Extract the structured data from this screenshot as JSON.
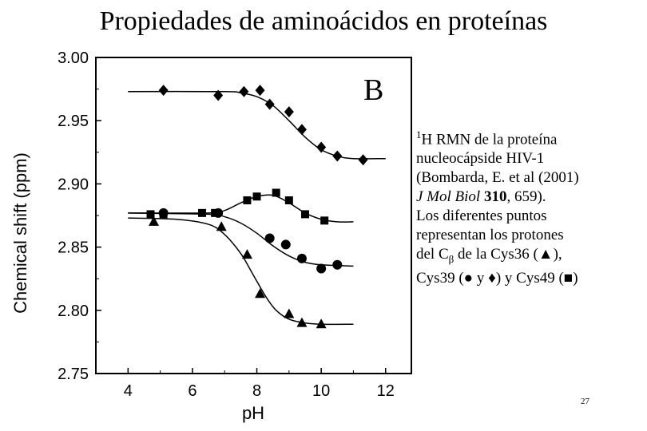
{
  "slide": {
    "title": "Propiedades de aminoácidos en proteínas",
    "page_number": "27"
  },
  "caption": {
    "line1_sup": "1",
    "line1_text": "H RMN de la proteína",
    "line2": "nucleocápside HIV-1",
    "line3": "(Bombarda, E. et al (2001)",
    "line4_journal": "J Mol Biol",
    "line4_volume": "310",
    "line4_pages": ", 659).",
    "line5": "Los diferentes puntos",
    "line6": "representan los protones",
    "line7_a": "del C",
    "line7_sub": "β",
    "line7_b": " de la Cys36 (▲),",
    "line8": "Cys39 (● y ♦) y Cys49 (■)"
  },
  "chart_data": {
    "type": "scatter",
    "panel_label": "B",
    "xlabel": "pH",
    "ylabel": "Chemical shift (ppm)",
    "xlim": [
      3,
      12.8
    ],
    "ylim": [
      2.75,
      3.0
    ],
    "xticks": [
      4,
      6,
      8,
      10,
      12
    ],
    "xtick_labels": [
      "4",
      "6",
      "8",
      "10",
      "12"
    ],
    "yticks": [
      2.75,
      2.8,
      2.85,
      2.9,
      2.95,
      3.0
    ],
    "ytick_labels": [
      "2.75",
      "2.80",
      "2.85",
      "2.90",
      "2.95",
      "3.00"
    ],
    "grid": false,
    "series": [
      {
        "marker": "diamond",
        "points": [
          [
            5.1,
            2.974
          ],
          [
            6.8,
            2.97
          ],
          [
            7.6,
            2.973
          ],
          [
            8.1,
            2.974
          ],
          [
            8.4,
            2.963
          ],
          [
            9.0,
            2.957
          ],
          [
            9.4,
            2.943
          ],
          [
            10.0,
            2.929
          ],
          [
            10.5,
            2.922
          ],
          [
            11.3,
            2.919
          ]
        ],
        "fit": [
          [
            4.0,
            2.973
          ],
          [
            7.0,
            2.973
          ],
          [
            7.5,
            2.972
          ],
          [
            8.0,
            2.969
          ],
          [
            8.5,
            2.962
          ],
          [
            9.0,
            2.95
          ],
          [
            9.5,
            2.937
          ],
          [
            10.0,
            2.927
          ],
          [
            10.5,
            2.922
          ],
          [
            11.0,
            2.92
          ],
          [
            12.0,
            2.92
          ]
        ]
      },
      {
        "marker": "square",
        "points": [
          [
            4.7,
            2.876
          ],
          [
            5.1,
            2.876
          ],
          [
            6.3,
            2.877
          ],
          [
            6.7,
            2.877
          ],
          [
            7.7,
            2.887
          ],
          [
            8.0,
            2.89
          ],
          [
            8.6,
            2.893
          ],
          [
            9.0,
            2.887
          ],
          [
            9.5,
            2.876
          ],
          [
            10.1,
            2.871
          ]
        ],
        "fit": [
          [
            4.0,
            2.877
          ],
          [
            6.5,
            2.877
          ],
          [
            7.0,
            2.879
          ],
          [
            7.5,
            2.885
          ],
          [
            8.0,
            2.89
          ],
          [
            8.5,
            2.891
          ],
          [
            9.0,
            2.885
          ],
          [
            9.5,
            2.877
          ],
          [
            10.0,
            2.872
          ],
          [
            10.5,
            2.87
          ],
          [
            11.0,
            2.87
          ]
        ]
      },
      {
        "marker": "circle",
        "points": [
          [
            5.1,
            2.877
          ],
          [
            6.8,
            2.877
          ],
          [
            8.4,
            2.857
          ],
          [
            8.9,
            2.852
          ],
          [
            9.4,
            2.841
          ],
          [
            10.0,
            2.833
          ],
          [
            10.5,
            2.836
          ]
        ],
        "fit": [
          [
            4.0,
            2.877
          ],
          [
            6.5,
            2.876
          ],
          [
            7.0,
            2.874
          ],
          [
            7.5,
            2.869
          ],
          [
            8.0,
            2.861
          ],
          [
            8.5,
            2.851
          ],
          [
            9.0,
            2.843
          ],
          [
            9.5,
            2.838
          ],
          [
            10.0,
            2.836
          ],
          [
            11.0,
            2.835
          ]
        ]
      },
      {
        "marker": "triangle",
        "points": [
          [
            4.8,
            2.87
          ],
          [
            6.9,
            2.866
          ],
          [
            7.7,
            2.844
          ],
          [
            8.1,
            2.813
          ],
          [
            9.0,
            2.797
          ],
          [
            9.4,
            2.79
          ],
          [
            10.0,
            2.789
          ]
        ],
        "fit": [
          [
            4.0,
            2.873
          ],
          [
            5.5,
            2.872
          ],
          [
            6.5,
            2.868
          ],
          [
            7.0,
            2.86
          ],
          [
            7.5,
            2.845
          ],
          [
            7.8,
            2.832
          ],
          [
            8.0,
            2.823
          ],
          [
            8.3,
            2.81
          ],
          [
            8.6,
            2.8
          ],
          [
            9.0,
            2.793
          ],
          [
            9.5,
            2.79
          ],
          [
            10.0,
            2.789
          ],
          [
            11.0,
            2.789
          ]
        ]
      }
    ]
  }
}
